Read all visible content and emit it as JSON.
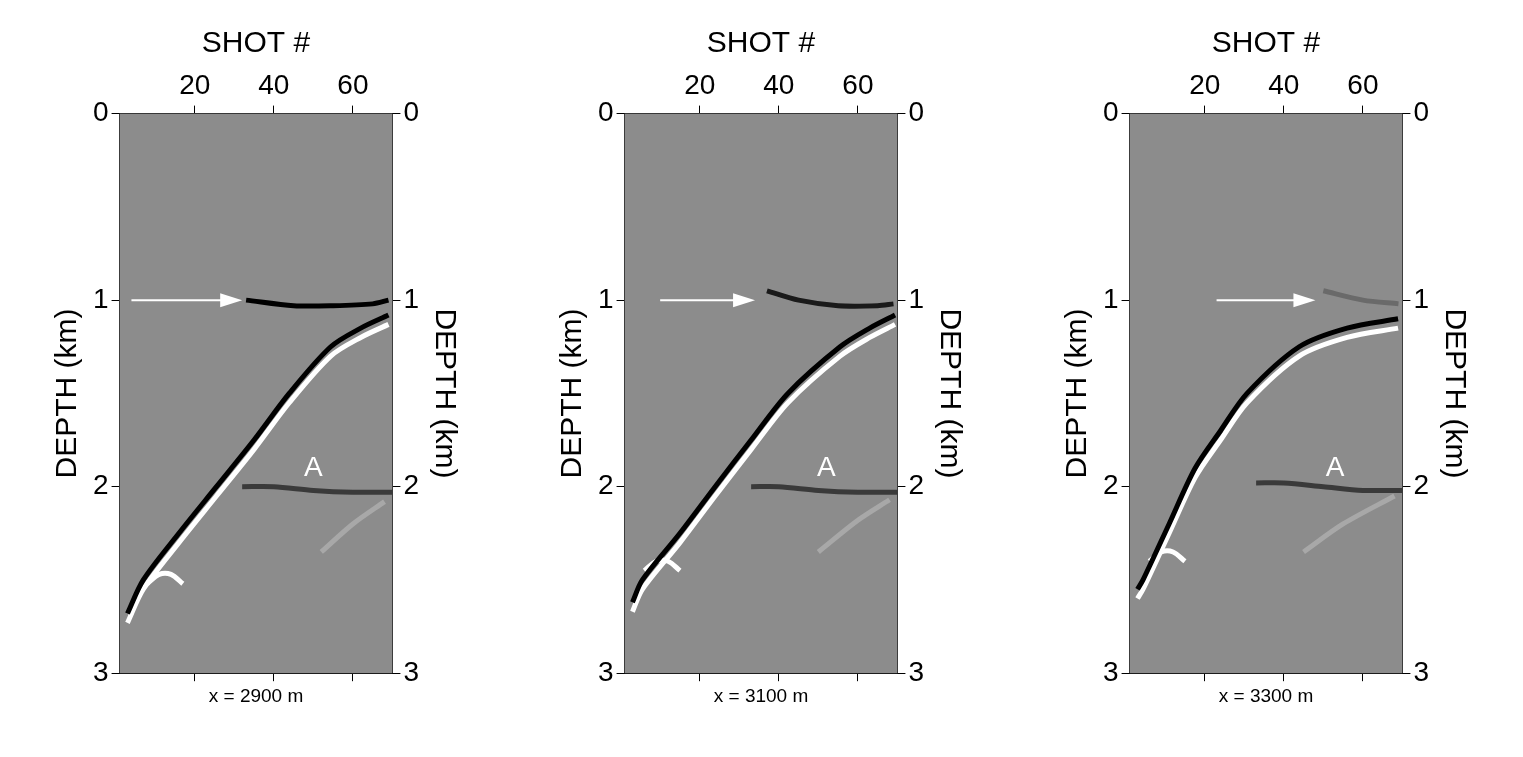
{
  "chart_data": [
    {
      "type": "line",
      "xlabel": "SHOT #",
      "ylabel": "DEPTH (km)",
      "caption": "x = 2900 m",
      "xlim": [
        1,
        70
      ],
      "xticks": [
        20,
        40,
        60
      ],
      "ylim": [
        3,
        0
      ],
      "yticks": [
        0,
        1,
        2,
        3
      ],
      "grid": false,
      "series": [
        {
          "x": [
            33,
            45,
            55,
            65,
            69
          ],
          "values": [
            1.0,
            1.03,
            1.03,
            1.02,
            1.0
          ],
          "color": "#000000"
        },
        {
          "x": [
            3,
            7,
            16,
            25.5,
            35,
            43.9,
            54.4,
            62,
            69
          ],
          "values": [
            2.68,
            2.5,
            2.25,
            2.0,
            1.75,
            1.5,
            1.25,
            1.15,
            1.08
          ],
          "color": "#000000"
        },
        {
          "x": [
            3,
            7,
            16,
            25.5,
            35,
            43.9,
            54.4,
            62,
            69
          ],
          "values": [
            2.73,
            2.55,
            2.3,
            2.05,
            1.8,
            1.55,
            1.3,
            1.2,
            1.13
          ],
          "color": "#ffffff"
        },
        {
          "x": [
            32,
            40,
            50,
            60,
            70
          ],
          "values": [
            2.0,
            2.0,
            2.02,
            2.03,
            2.03
          ],
          "color": "#3a3a3a"
        },
        {
          "x": [
            52,
            60,
            68
          ],
          "values": [
            2.35,
            2.2,
            2.08
          ],
          "color": "#a8a8a8"
        },
        {
          "x": [
            8,
            11,
            14,
            17
          ],
          "values": [
            2.52,
            2.47,
            2.47,
            2.52
          ],
          "color": "#ffffff"
        }
      ],
      "annotations": [
        {
          "text": "A",
          "x": 50,
          "y": 1.9
        }
      ],
      "arrows": [
        {
          "x": [
            4,
            32
          ],
          "y": [
            1.0,
            1.0
          ]
        }
      ]
    },
    {
      "type": "line",
      "xlabel": "SHOT #",
      "ylabel": "DEPTH (km)",
      "caption": "x = 3100 m",
      "xlim": [
        1,
        70
      ],
      "xticks": [
        20,
        40,
        60
      ],
      "ylim": [
        3,
        0
      ],
      "yticks": [
        0,
        1,
        2,
        3
      ],
      "grid": false,
      "series": [
        {
          "x": [
            37,
            45,
            55,
            65,
            69
          ],
          "values": [
            0.95,
            1.0,
            1.03,
            1.03,
            1.02
          ],
          "color": "#1a1a1a"
        },
        {
          "x": [
            3,
            5.5,
            15,
            23.9,
            33,
            42.3,
            55.5,
            63,
            69.4
          ],
          "values": [
            2.62,
            2.5,
            2.25,
            2.0,
            1.75,
            1.5,
            1.25,
            1.15,
            1.08
          ],
          "color": "#000000"
        },
        {
          "x": [
            3,
            5.5,
            15,
            23.9,
            33,
            42.3,
            55.5,
            63,
            69.4
          ],
          "values": [
            2.67,
            2.55,
            2.3,
            2.05,
            1.8,
            1.55,
            1.3,
            1.2,
            1.13
          ],
          "color": "#ffffff"
        },
        {
          "x": [
            33,
            40,
            50,
            60,
            70
          ],
          "values": [
            2.0,
            2.0,
            2.02,
            2.03,
            2.03
          ],
          "color": "#3a3a3a"
        },
        {
          "x": [
            50,
            60,
            68
          ],
          "values": [
            2.35,
            2.18,
            2.07
          ],
          "color": "#a8a8a8"
        },
        {
          "x": [
            6,
            9,
            12,
            15
          ],
          "values": [
            2.45,
            2.4,
            2.4,
            2.45
          ],
          "color": "#ffffff"
        }
      ],
      "annotations": [
        {
          "text": "A",
          "x": 52,
          "y": 1.9
        }
      ],
      "arrows": [
        {
          "x": [
            10,
            34
          ],
          "y": [
            1.0,
            1.0
          ]
        }
      ]
    },
    {
      "type": "line",
      "xlabel": "SHOT #",
      "ylabel": "DEPTH (km)",
      "caption": "x = 3300 m",
      "xlim": [
        1,
        70
      ],
      "xticks": [
        20,
        40,
        60
      ],
      "ylim": [
        3,
        0
      ],
      "yticks": [
        0,
        1,
        2,
        3
      ],
      "grid": false,
      "series": [
        {
          "x": [
            50,
            60,
            69
          ],
          "values": [
            0.95,
            1.0,
            1.02
          ],
          "color": "#6a6a6a"
        },
        {
          "x": [
            3,
            4.4,
            11,
            17.6,
            24,
            30.7,
            43.9,
            56,
            68.9
          ],
          "values": [
            2.55,
            2.5,
            2.2,
            1.9,
            1.7,
            1.5,
            1.25,
            1.15,
            1.1
          ],
          "color": "#000000"
        },
        {
          "x": [
            3,
            4.4,
            11,
            17.6,
            24,
            30.7,
            43.9,
            56,
            68.9
          ],
          "values": [
            2.6,
            2.55,
            2.25,
            1.95,
            1.75,
            1.55,
            1.3,
            1.2,
            1.15
          ],
          "color": "#ffffff"
        },
        {
          "x": [
            33,
            40,
            50,
            60,
            70
          ],
          "values": [
            1.98,
            1.98,
            2.0,
            2.02,
            2.02
          ],
          "color": "#3a3a3a"
        },
        {
          "x": [
            45,
            55,
            68
          ],
          "values": [
            2.35,
            2.2,
            2.05
          ],
          "color": "#a8a8a8"
        },
        {
          "x": [
            6,
            9,
            12,
            15
          ],
          "values": [
            2.4,
            2.35,
            2.35,
            2.4
          ],
          "color": "#ffffff"
        }
      ],
      "annotations": [
        {
          "text": "A",
          "x": 53,
          "y": 1.9
        }
      ],
      "arrows": [
        {
          "x": [
            23,
            48
          ],
          "y": [
            1.0,
            1.0
          ]
        }
      ]
    }
  ]
}
